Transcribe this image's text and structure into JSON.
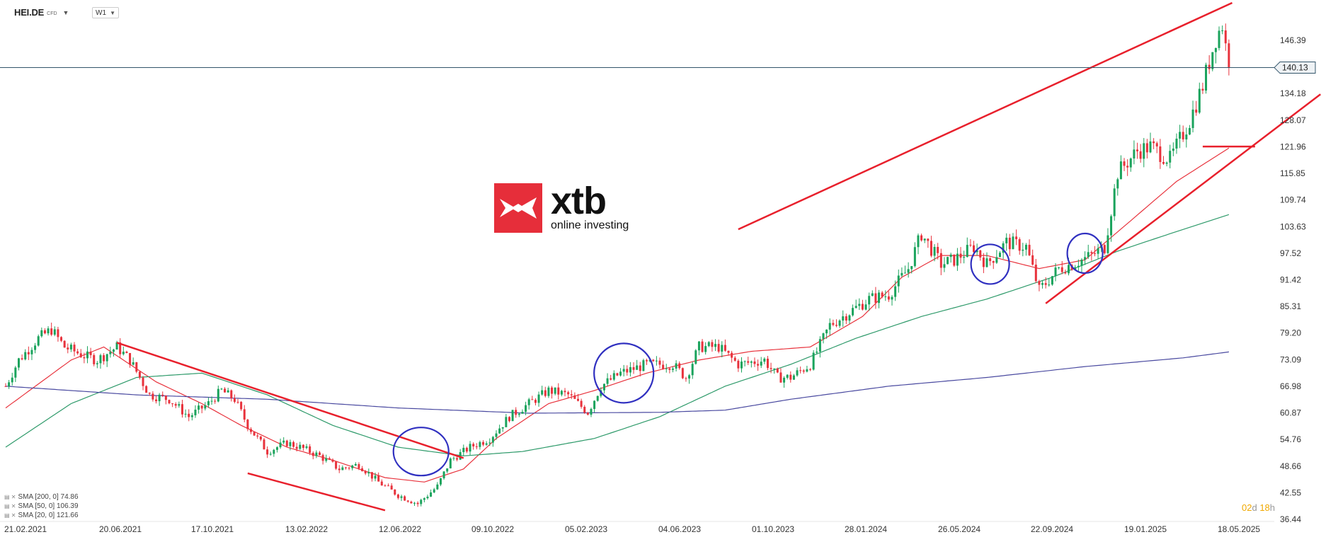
{
  "header": {
    "symbol": "HEI.DE",
    "symbol_type": "CFD",
    "timeframe": "W1"
  },
  "logo": {
    "name": "xtb",
    "tagline": "online investing"
  },
  "current_price_label": "140.13",
  "countdown": {
    "days": "02",
    "d_unit": "d",
    "hours": "18",
    "h_unit": "h"
  },
  "legend": [
    {
      "label": "SMA [200, 0] 74.86"
    },
    {
      "label": "SMA [50, 0] 106.39"
    },
    {
      "label": "SMA [20, 0] 121.66"
    }
  ],
  "colors": {
    "up": "#1aa35c",
    "down": "#e8323c",
    "sma20": "#e8323c",
    "sma50": "#2e9a6a",
    "sma200": "#4a4aa0",
    "trend": "#e8202c",
    "circle": "#3030c0",
    "price_line": "#33556a"
  },
  "chart_data": {
    "type": "candlestick",
    "ylim": [
      36.44,
      152.5
    ],
    "y_ticks": [
      146.39,
      140.13,
      134.18,
      128.07,
      121.96,
      115.85,
      109.74,
      103.63,
      97.52,
      91.42,
      85.31,
      79.2,
      73.09,
      66.98,
      60.87,
      54.76,
      48.66,
      42.55,
      36.44
    ],
    "y_tick_labels": [
      "146.39",
      "134.18",
      "128.07",
      "121.96",
      "115.85",
      "109.74",
      "103.63",
      "97.52",
      "91.42",
      "85.31",
      "79.20",
      "73.09",
      "66.98",
      "60.87",
      "54.76",
      "48.66",
      "42.55",
      "36.44"
    ],
    "x_ticks": [
      "21.02.2021",
      "20.06.2021",
      "17.10.2021",
      "13.02.2022",
      "12.06.2022",
      "09.10.2022",
      "05.02.2023",
      "04.06.2023",
      "01.10.2023",
      "28.01.2024",
      "26.05.2024",
      "22.09.2024",
      "19.01.2025",
      "18.05.2025"
    ],
    "path_anchors": [
      [
        0,
        67
      ],
      [
        4,
        73
      ],
      [
        10,
        78
      ],
      [
        14,
        80
      ],
      [
        18,
        76
      ],
      [
        24,
        74
      ],
      [
        28,
        73
      ],
      [
        34,
        76
      ],
      [
        38,
        73
      ],
      [
        44,
        65
      ],
      [
        50,
        64
      ],
      [
        56,
        60
      ],
      [
        62,
        63
      ],
      [
        66,
        66
      ],
      [
        70,
        64
      ],
      [
        74,
        58
      ],
      [
        80,
        52
      ],
      [
        86,
        54
      ],
      [
        90,
        53
      ],
      [
        96,
        51
      ],
      [
        102,
        48
      ],
      [
        108,
        49
      ],
      [
        114,
        45
      ],
      [
        120,
        42
      ],
      [
        126,
        40
      ],
      [
        132,
        44
      ],
      [
        136,
        50
      ],
      [
        142,
        53
      ],
      [
        148,
        55
      ],
      [
        154,
        60
      ],
      [
        160,
        63
      ],
      [
        166,
        66
      ],
      [
        172,
        65
      ],
      [
        178,
        61
      ],
      [
        182,
        67
      ],
      [
        188,
        70
      ],
      [
        196,
        72
      ],
      [
        204,
        72
      ],
      [
        208,
        69
      ],
      [
        212,
        76
      ],
      [
        218,
        76
      ],
      [
        224,
        72
      ],
      [
        232,
        73
      ],
      [
        236,
        69
      ],
      [
        240,
        69
      ],
      [
        246,
        72
      ],
      [
        252,
        81
      ],
      [
        258,
        84
      ],
      [
        264,
        87
      ],
      [
        270,
        88
      ],
      [
        276,
        94
      ],
      [
        280,
        102
      ],
      [
        286,
        95
      ],
      [
        290,
        96
      ],
      [
        296,
        99
      ],
      [
        300,
        95
      ],
      [
        306,
        100
      ],
      [
        312,
        99
      ],
      [
        316,
        89
      ],
      [
        322,
        94
      ],
      [
        326,
        95
      ],
      [
        332,
        97
      ],
      [
        336,
        99
      ],
      [
        340,
        116
      ],
      [
        346,
        121
      ],
      [
        350,
        122
      ],
      [
        356,
        119
      ],
      [
        362,
        128
      ],
      [
        366,
        136
      ],
      [
        370,
        147
      ],
      [
        372,
        150
      ],
      [
        374,
        140
      ]
    ],
    "sma": [
      {
        "name": "SMA [20, 0]",
        "value": 121.66,
        "anchors": [
          [
            0,
            62
          ],
          [
            20,
            73
          ],
          [
            30,
            76
          ],
          [
            46,
            68
          ],
          [
            60,
            63
          ],
          [
            72,
            58
          ],
          [
            86,
            53
          ],
          [
            100,
            50
          ],
          [
            116,
            46
          ],
          [
            128,
            45
          ],
          [
            140,
            48
          ],
          [
            150,
            55
          ],
          [
            166,
            63
          ],
          [
            180,
            66
          ],
          [
            196,
            70
          ],
          [
            212,
            73
          ],
          [
            228,
            75
          ],
          [
            246,
            76
          ],
          [
            262,
            83
          ],
          [
            274,
            92
          ],
          [
            286,
            97
          ],
          [
            300,
            97
          ],
          [
            316,
            94
          ],
          [
            330,
            96
          ],
          [
            344,
            105
          ],
          [
            358,
            114
          ],
          [
            374,
            121.66
          ]
        ]
      },
      {
        "name": "SMA [50, 0]",
        "value": 106.39,
        "anchors": [
          [
            0,
            53
          ],
          [
            20,
            63
          ],
          [
            40,
            69
          ],
          [
            60,
            70
          ],
          [
            80,
            65
          ],
          [
            100,
            58
          ],
          [
            120,
            53
          ],
          [
            140,
            51
          ],
          [
            158,
            52
          ],
          [
            180,
            55
          ],
          [
            200,
            60
          ],
          [
            220,
            67
          ],
          [
            240,
            72
          ],
          [
            260,
            78
          ],
          [
            280,
            83
          ],
          [
            300,
            87
          ],
          [
            320,
            92
          ],
          [
            340,
            98
          ],
          [
            356,
            102
          ],
          [
            374,
            106.39
          ]
        ]
      },
      {
        "name": "SMA [200, 0]",
        "value": 74.86,
        "anchors": [
          [
            0,
            67
          ],
          [
            40,
            65
          ],
          [
            80,
            64
          ],
          [
            120,
            62
          ],
          [
            160,
            60.8
          ],
          [
            200,
            61
          ],
          [
            220,
            61.5
          ],
          [
            240,
            64
          ],
          [
            270,
            67
          ],
          [
            300,
            69
          ],
          [
            330,
            71.5
          ],
          [
            360,
            73.5
          ],
          [
            374,
            74.86
          ]
        ]
      }
    ]
  }
}
